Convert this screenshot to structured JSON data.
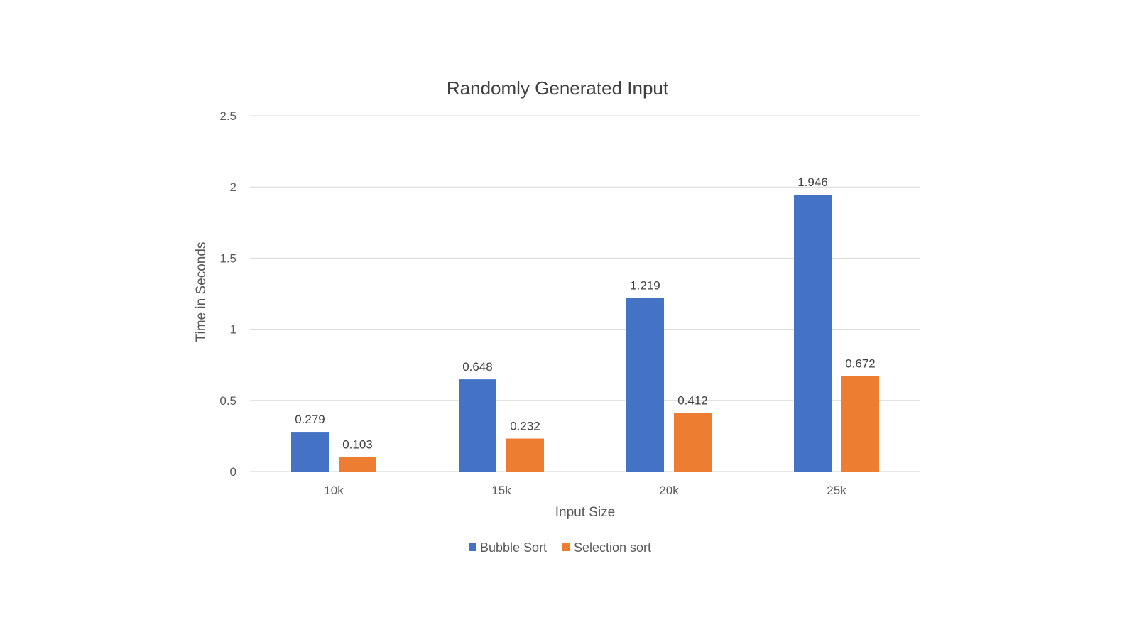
{
  "chart_data": {
    "type": "bar",
    "title": "Randomly Generated Input",
    "xlabel": "Input Size",
    "ylabel": "Time in Seconds",
    "categories": [
      "10k",
      "15k",
      "20k",
      "25k"
    ],
    "series": [
      {
        "name": "Bubble Sort",
        "color": "#4472C4",
        "values": [
          0.279,
          0.648,
          1.219,
          1.946
        ],
        "labels": [
          "0.279",
          "0.648",
          "1.219",
          "1.946"
        ]
      },
      {
        "name": "Selection sort",
        "color": "#ED7D31",
        "values": [
          0.103,
          0.232,
          0.412,
          0.672
        ],
        "labels": [
          "0.103",
          "0.232",
          "0.412",
          "0.672"
        ]
      }
    ],
    "ylim": [
      0,
      2.5
    ],
    "yticks": [
      0,
      0.5,
      1,
      1.5,
      2,
      2.5
    ],
    "ytick_labels": [
      "0",
      "0.5",
      "1",
      "1.5",
      "2",
      "2.5"
    ],
    "grid": true,
    "legend_position": "bottom"
  }
}
